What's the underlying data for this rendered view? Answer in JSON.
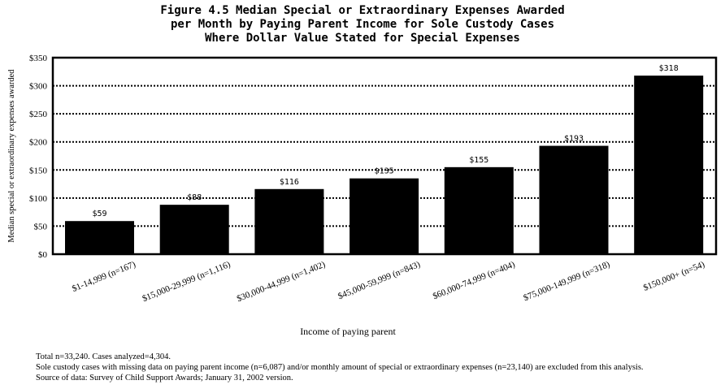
{
  "chart_data": {
    "type": "bar",
    "title_lines": [
      "Figure 4.5  Median Special or Extraordinary Expenses Awarded",
      "per Month by Paying Parent Income for Sole Custody Cases",
      "Where Dollar Value Stated for Special Expenses"
    ],
    "xlabel": "Income of paying parent",
    "ylabel": "Median special or extraordinary expenses awarded",
    "categories": [
      "$1-14,999 (n=167)",
      "$15,000-29,999 (n=1,116)",
      "$30,000-44,999 (n=1,402)",
      "$45,000-59,999 (n=843)",
      "$60,000-74,999 (n=404)",
      "$75,000-149,999 (n=318)",
      "$150,000+ (n=54)"
    ],
    "values": [
      59,
      88,
      116,
      135,
      155,
      193,
      318
    ],
    "data_labels": [
      "$59",
      "$88",
      "$116",
      "$135",
      "$155",
      "$193",
      "$318"
    ],
    "ylim": [
      0,
      350
    ],
    "yticks": [
      0,
      50,
      100,
      150,
      200,
      250,
      300,
      350
    ],
    "ytick_labels": [
      "$0",
      "$50",
      "$100",
      "$150",
      "$200",
      "$250",
      "$300",
      "$350"
    ],
    "grid": "horizontal dotted",
    "bar_color": "#000000"
  },
  "notes": [
    "Total n=33,240.  Cases analyzed=4,304.",
    "Sole custody cases with missing data on paying parent income (n=6,087) and/or monthly amount of special or extraordinary expenses (n=23,140) are excluded from this analysis.",
    "Source of data:  Survey of Child Support Awards; January 31, 2002 version."
  ]
}
